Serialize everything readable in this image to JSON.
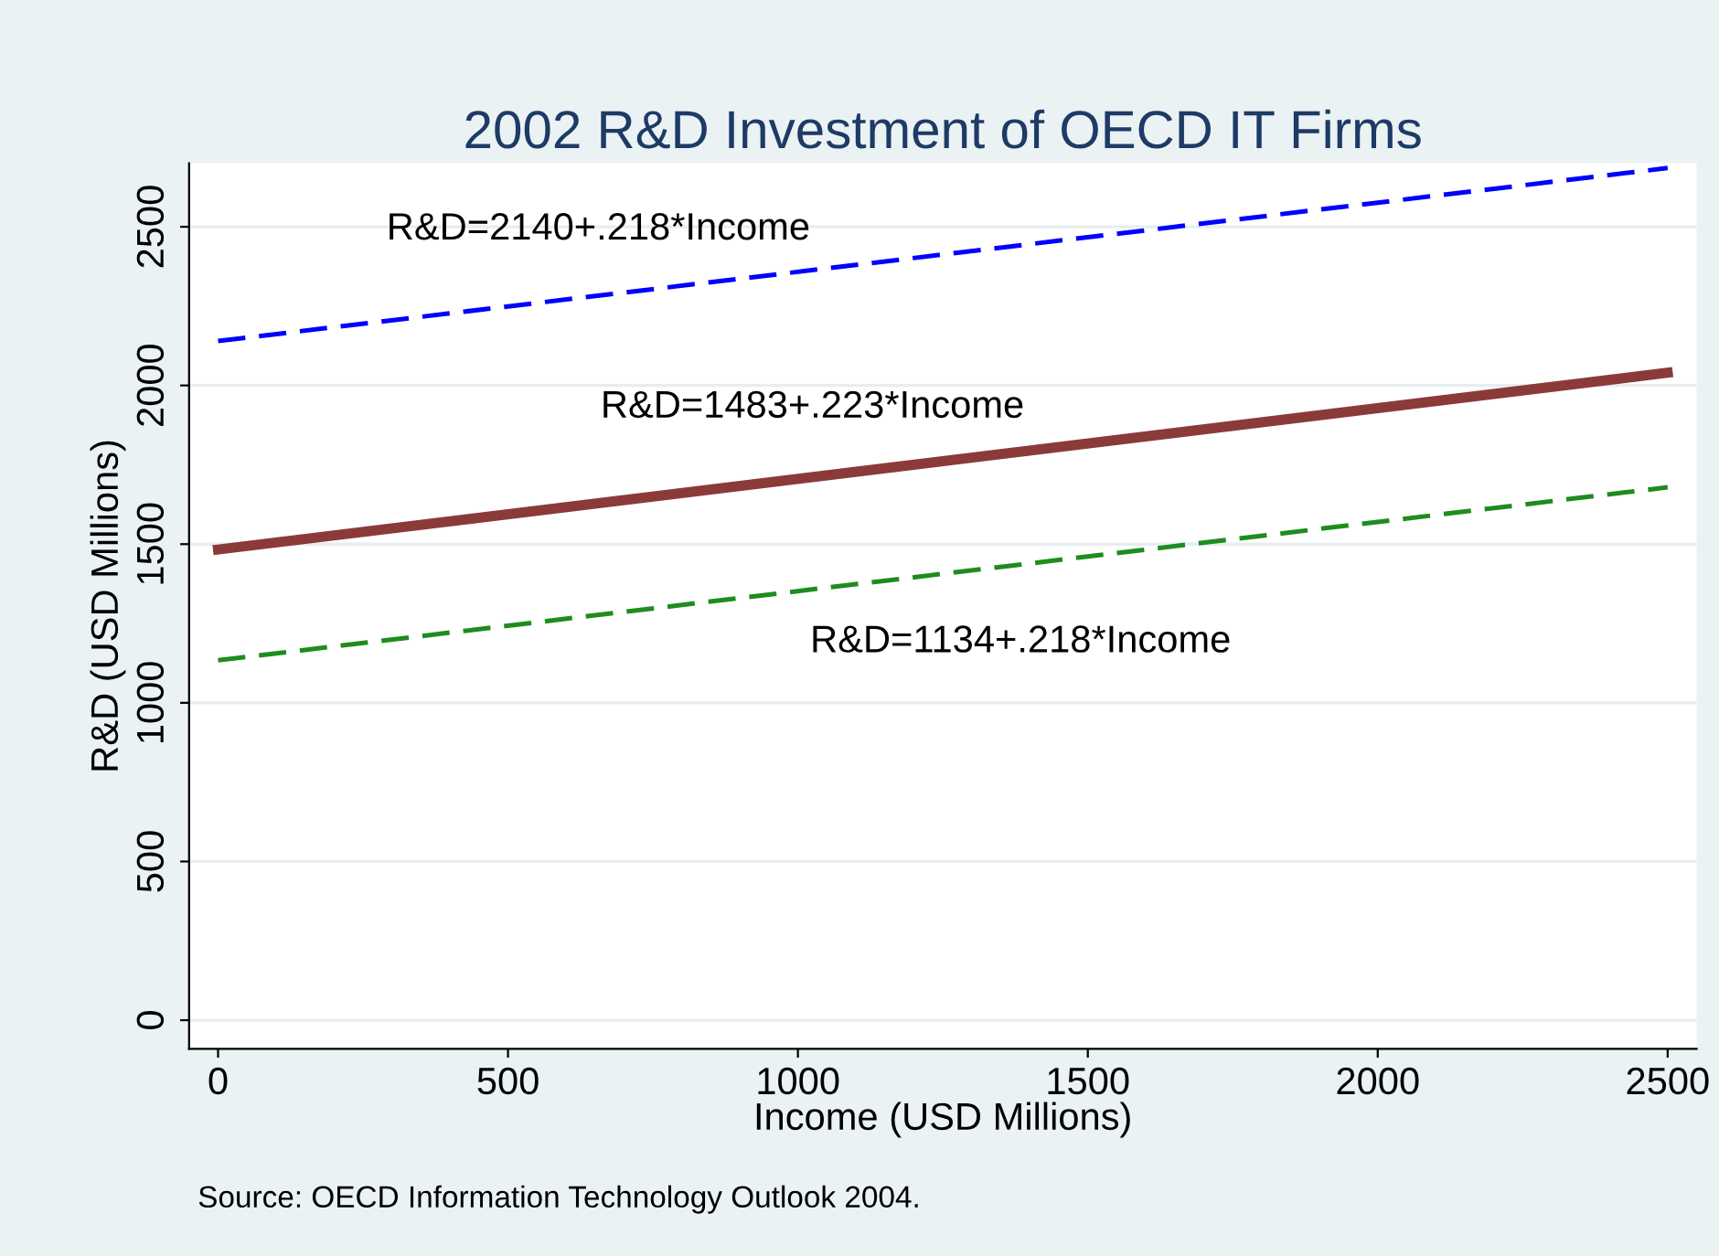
{
  "chart_data": {
    "type": "line",
    "title": "2002 R&D Investment of OECD IT Firms",
    "xlabel": "Income (USD Millions)",
    "ylabel": "R&D (USD Millions)",
    "x": [
      0,
      2500
    ],
    "series": [
      {
        "color": "#0000ff",
        "values": [
          2140,
          2685
        ],
        "line_style": "dashed"
      },
      {
        "color": "#8b3a3a",
        "values": [
          1483,
          2040
        ],
        "line_style": "solid"
      },
      {
        "color": "#1e8c1e",
        "values": [
          1134,
          1679
        ],
        "line_style": "dashed"
      }
    ],
    "annotations": [
      "R&D=2140+.218*Income",
      "R&D=1483+.223*Income",
      "R&D=1134+.218*Income",
      "Source: OECD Information Technology Outlook 2004."
    ],
    "xlim": [
      -50,
      2550
    ],
    "ylim": [
      -90,
      2700
    ],
    "xticks": [
      0,
      500,
      1000,
      1500,
      2000,
      2500
    ],
    "yticks": [
      0,
      500,
      1000,
      1500,
      2000,
      2500
    ],
    "grid": "y",
    "marker": "none"
  }
}
